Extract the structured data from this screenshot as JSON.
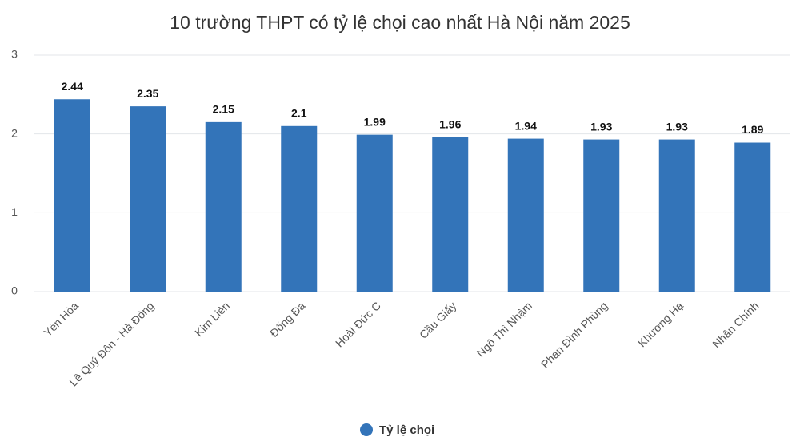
{
  "chart_data": {
    "type": "bar",
    "title": "10 trường THPT có tỷ lệ chọi cao nhất Hà Nội năm 2025",
    "categories": [
      "Yên Hòa",
      "Lê Quý Đôn - Hà Đông",
      "Kim Liên",
      "Đống Đa",
      "Hoài Đức C",
      "Cầu Giấy",
      "Ngô Thì Nhậm",
      "Phan Đình Phùng",
      "Khương Hạ",
      "Nhân Chính"
    ],
    "series": [
      {
        "name": "Tỷ lệ chọi",
        "color": "#3374b9",
        "values": [
          2.44,
          2.35,
          2.15,
          2.1,
          1.99,
          1.96,
          1.94,
          1.93,
          1.93,
          1.89
        ]
      }
    ],
    "ylim": [
      0,
      3
    ],
    "yticks": [
      0,
      1,
      2,
      3
    ],
    "grid": true,
    "legend": "bottom"
  }
}
